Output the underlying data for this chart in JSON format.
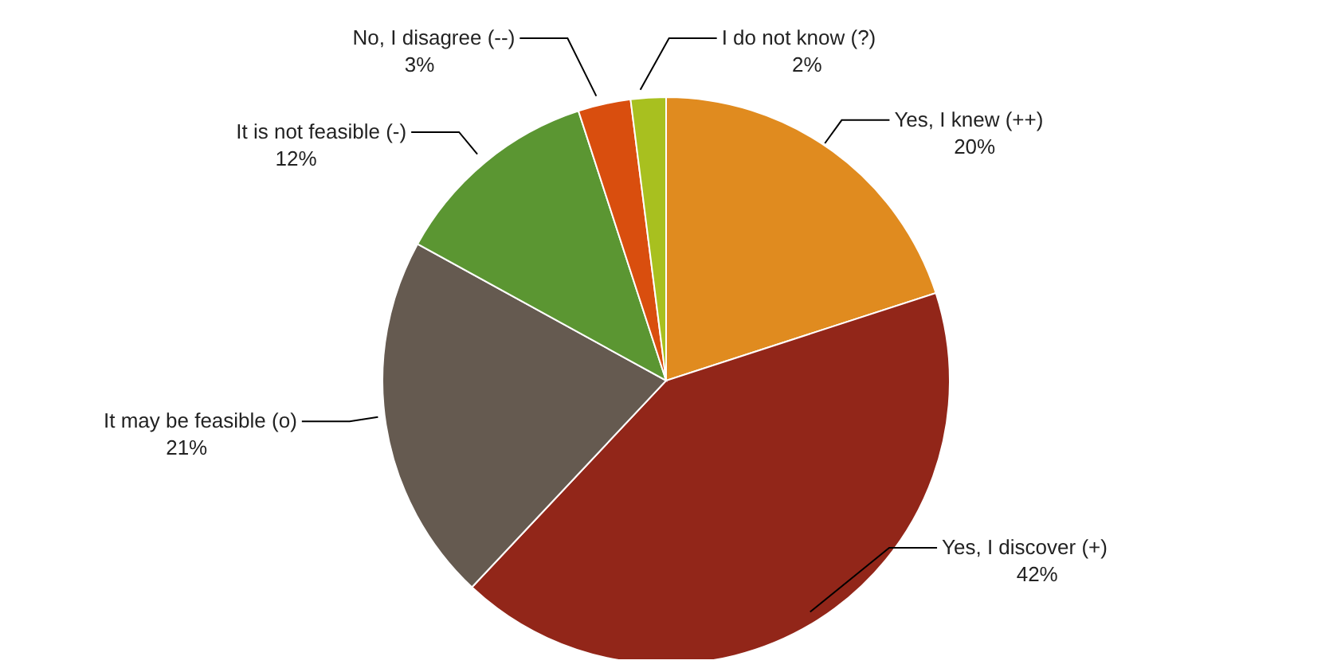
{
  "chart_data": {
    "type": "pie",
    "categories": [
      "Yes, I knew (++)",
      "Yes, I discover (+)",
      "It may be feasible (o)",
      "It is not feasible (-)",
      "No, I disagree (--)",
      "I do not know (?)"
    ],
    "values": [
      20,
      42,
      21,
      12,
      3,
      2
    ],
    "colors": [
      "#e08b1f",
      "#922619",
      "#655a50",
      "#5b9632",
      "#d94e0e",
      "#a8c01f"
    ],
    "value_labels": [
      "20%",
      "42%",
      "21%",
      "12%",
      "3%",
      "2%"
    ],
    "legend": false
  }
}
